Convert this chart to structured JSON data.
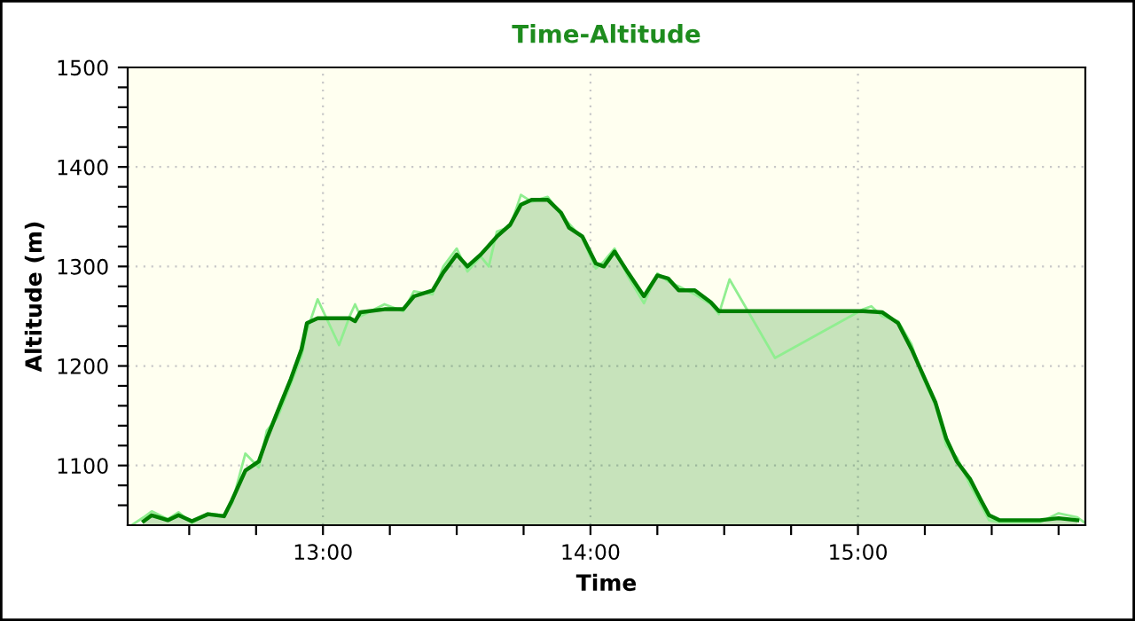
{
  "chart_data": {
    "type": "area",
    "title": "Time-Altitude",
    "xlabel": "Time",
    "ylabel": "Altitude (m)",
    "xlim": [
      12.27,
      15.85
    ],
    "ylim": [
      1040,
      1500
    ],
    "xticks": [
      {
        "value": 12.5,
        "label": null
      },
      {
        "value": 12.75,
        "label": null
      },
      {
        "value": 13,
        "label": "13:00"
      },
      {
        "value": 13.25,
        "label": null
      },
      {
        "value": 13.5,
        "label": null
      },
      {
        "value": 13.75,
        "label": null
      },
      {
        "value": 14,
        "label": "14:00"
      },
      {
        "value": 14.25,
        "label": null
      },
      {
        "value": 14.5,
        "label": null
      },
      {
        "value": 14.75,
        "label": null
      },
      {
        "value": 15,
        "label": "15:00"
      },
      {
        "value": 15.25,
        "label": null
      },
      {
        "value": 15.5,
        "label": null
      },
      {
        "value": 15.75,
        "label": null
      }
    ],
    "yticks": [
      {
        "value": 1060,
        "label": null
      },
      {
        "value": 1080,
        "label": null
      },
      1100,
      {
        "value": 1120,
        "label": null
      },
      {
        "value": 1140,
        "label": null
      },
      {
        "value": 1160,
        "label": null
      },
      {
        "value": 1180,
        "label": null
      },
      1200,
      {
        "value": 1220,
        "label": null
      },
      {
        "value": 1240,
        "label": null
      },
      {
        "value": 1260,
        "label": null
      },
      {
        "value": 1280,
        "label": null
      },
      1300,
      {
        "value": 1320,
        "label": null
      },
      {
        "value": 1340,
        "label": null
      },
      {
        "value": 1360,
        "label": null
      },
      {
        "value": 1380,
        "label": null
      },
      1400,
      {
        "value": 1420,
        "label": null
      },
      {
        "value": 1440,
        "label": null
      },
      {
        "value": 1460,
        "label": null
      },
      {
        "value": 1480,
        "label": null
      },
      1500
    ],
    "grid": true,
    "legend": false,
    "series": [
      {
        "type": "line",
        "color": "#90ee90",
        "x": [
          12.29,
          12.33,
          12.36,
          12.42,
          12.46,
          12.51,
          12.57,
          12.63,
          12.66,
          12.71,
          12.76,
          12.79,
          12.83,
          12.88,
          12.92,
          12.94,
          12.98,
          13.06,
          13.1,
          13.12,
          13.14,
          13.23,
          13.3,
          13.34,
          13.41,
          13.45,
          13.5,
          13.54,
          13.59,
          13.62,
          13.65,
          13.7,
          13.74,
          13.78,
          13.84,
          13.89,
          13.92,
          13.97,
          14.02,
          14.05,
          14.09,
          14.14,
          14.2,
          14.25,
          14.29,
          14.33,
          14.39,
          14.45,
          14.48,
          14.52,
          14.69,
          15.02,
          15.05,
          15.09,
          15.15,
          15.2,
          15.24,
          15.29,
          15.33,
          15.37,
          15.42,
          15.46,
          15.49,
          15.53,
          15.68,
          15.75,
          15.82,
          15.85
        ],
        "values": [
          1041,
          1048,
          1054,
          1046,
          1053,
          1042,
          1052,
          1050,
          1062,
          1112,
          1098,
          1135,
          1148,
          1182,
          1210,
          1235,
          1267,
          1221,
          1250,
          1262,
          1250,
          1262,
          1255,
          1275,
          1272,
          1300,
          1318,
          1295,
          1310,
          1300,
          1335,
          1340,
          1372,
          1365,
          1370,
          1352,
          1343,
          1328,
          1298,
          1305,
          1318,
          1290,
          1263,
          1293,
          1285,
          1280,
          1272,
          1262,
          1252,
          1287,
          1208,
          1257,
          1260,
          1250,
          1245,
          1222,
          1190,
          1160,
          1120,
          1108,
          1080,
          1060,
          1045,
          1043,
          1043,
          1052,
          1048,
          1042
        ]
      },
      {
        "color": "#008000",
        "x": [
          12.33,
          12.36,
          12.42,
          12.46,
          12.51,
          12.57,
          12.63,
          12.66,
          12.71,
          12.76,
          12.79,
          12.83,
          12.88,
          12.92,
          12.94,
          12.98,
          13.0,
          13.1,
          13.12,
          13.14,
          13.23,
          13.3,
          13.34,
          13.41,
          13.45,
          13.5,
          13.54,
          13.59,
          13.65,
          13.7,
          13.74,
          13.78,
          13.84,
          13.89,
          13.92,
          13.97,
          14.02,
          14.05,
          14.09,
          14.14,
          14.2,
          14.25,
          14.29,
          14.33,
          14.39,
          14.45,
          14.48,
          15.02,
          15.09,
          15.15,
          15.2,
          15.24,
          15.29,
          15.33,
          15.37,
          15.42,
          15.46,
          15.49,
          15.53,
          15.68,
          15.75,
          15.82
        ],
        "values": [
          1044,
          1050,
          1045,
          1050,
          1044,
          1051,
          1049,
          1065,
          1095,
          1104,
          1127,
          1154,
          1187,
          1217,
          1243,
          1248,
          1248,
          1248,
          1245,
          1254,
          1257,
          1257,
          1270,
          1276,
          1294,
          1312,
          1300,
          1312,
          1330,
          1342,
          1362,
          1367,
          1367,
          1354,
          1339,
          1330,
          1303,
          1300,
          1315,
          1294,
          1270,
          1291,
          1288,
          1276,
          1276,
          1264,
          1255,
          1255,
          1254,
          1243,
          1217,
          1193,
          1163,
          1127,
          1104,
          1086,
          1065,
          1050,
          1045,
          1045,
          1047,
          1045
        ]
      }
    ]
  }
}
